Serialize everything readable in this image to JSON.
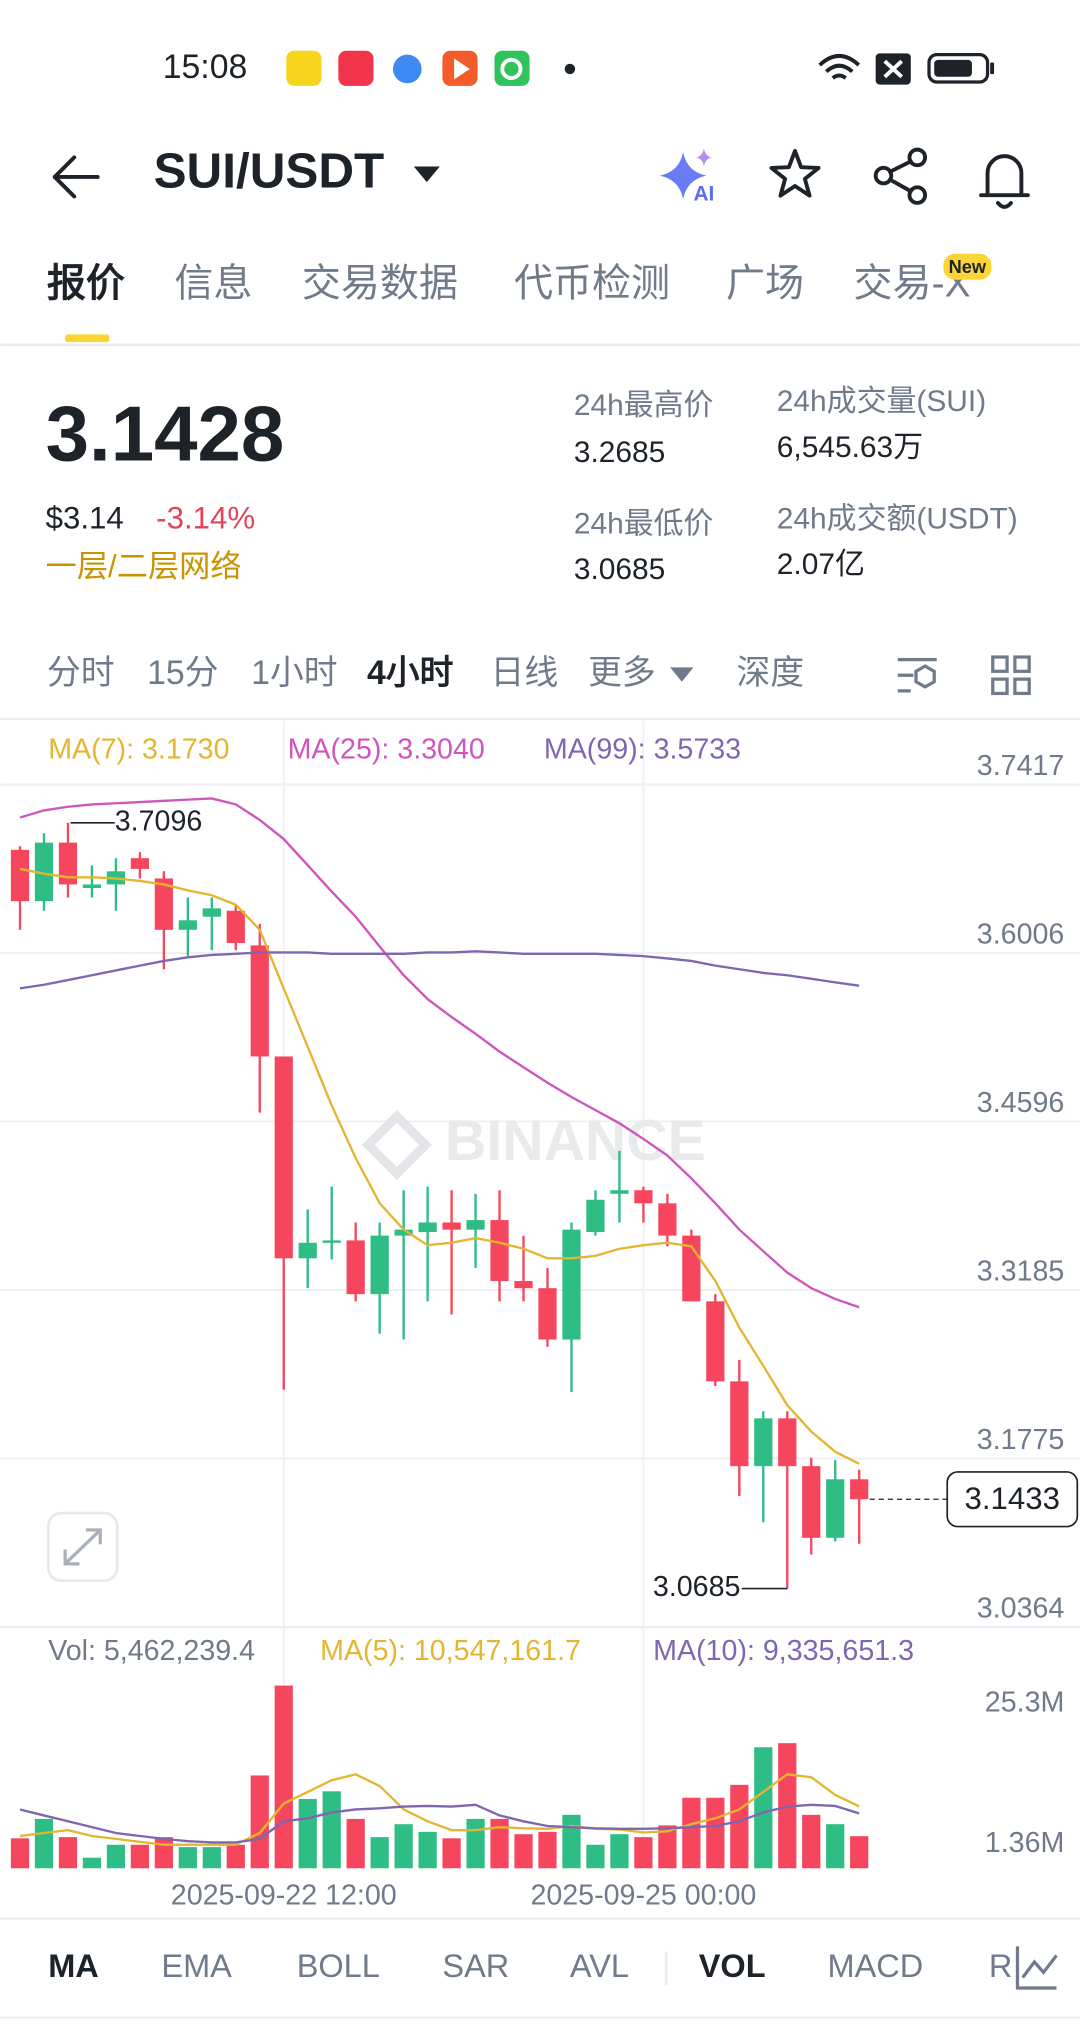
{
  "status": {
    "time": "15:08"
  },
  "header": {
    "pair": "SUI/USDT",
    "ai": "AI"
  },
  "tabs": [
    "报价",
    "信息",
    "交易数据",
    "代币检测",
    "广场",
    "交易-X"
  ],
  "tab_badge": "New",
  "price": {
    "last": "3.1428",
    "usd": "$3.14",
    "change": "-3.14%",
    "tag": "一层/二层网络"
  },
  "stats": [
    {
      "label": "24h最高价",
      "value": "3.2685"
    },
    {
      "label": "24h最低价",
      "value": "3.0685"
    },
    {
      "label": "24h成交量(SUI)",
      "value": "6,545.63万"
    },
    {
      "label": "24h成交额(USDT)",
      "value": "2.07亿"
    }
  ],
  "intervals": [
    "分时",
    "15分",
    "1小时",
    "4小时",
    "日线",
    "更多",
    "深度"
  ],
  "indicators": [
    "MA",
    "EMA",
    "BOLL",
    "SAR",
    "AVL",
    "VOL",
    "MACD",
    "RSI"
  ],
  "chart_data": {
    "type": "candlestick",
    "categories": [
      null,
      null,
      null,
      null,
      null,
      null,
      null,
      null,
      null,
      null,
      null,
      "2025-09-22 12:00",
      null,
      null,
      null,
      null,
      null,
      null,
      null,
      null,
      null,
      null,
      null,
      null,
      null,
      null,
      "2025-09-25 00:00",
      null,
      null,
      null,
      null,
      null,
      null,
      null,
      null,
      null
    ],
    "candles": {
      "open": [
        3.687,
        3.644,
        3.693,
        3.655,
        3.658,
        3.68,
        3.663,
        3.62,
        3.631,
        3.636,
        3.607,
        3.514,
        3.345,
        3.358,
        3.36,
        3.315,
        3.364,
        3.367,
        3.375,
        3.369,
        3.377,
        3.326,
        3.32,
        3.277,
        3.367,
        3.399,
        3.402,
        3.391,
        3.364,
        3.309,
        3.242,
        3.171,
        3.211,
        3.171,
        3.111,
        3.16
      ],
      "high": [
        3.69,
        3.701,
        3.7096,
        3.674,
        3.68,
        3.685,
        3.669,
        3.647,
        3.647,
        3.641,
        3.625,
        3.514,
        3.386,
        3.405,
        3.375,
        3.375,
        3.402,
        3.405,
        3.402,
        3.399,
        3.402,
        3.364,
        3.337,
        3.375,
        3.402,
        3.435,
        3.405,
        3.399,
        3.369,
        3.315,
        3.26,
        3.217,
        3.217,
        3.178,
        3.176,
        3.168
      ],
      "low": [
        3.62,
        3.636,
        3.647,
        3.647,
        3.636,
        3.663,
        3.587,
        3.598,
        3.603,
        3.603,
        3.467,
        3.235,
        3.32,
        3.344,
        3.309,
        3.282,
        3.277,
        3.309,
        3.298,
        3.337,
        3.309,
        3.309,
        3.271,
        3.233,
        3.364,
        3.375,
        3.375,
        3.355,
        3.309,
        3.238,
        3.146,
        3.124,
        3.0685,
        3.097,
        3.108,
        3.106
      ],
      "close": [
        3.644,
        3.693,
        3.658,
        3.658,
        3.669,
        3.671,
        3.62,
        3.628,
        3.638,
        3.609,
        3.514,
        3.345,
        3.358,
        3.36,
        3.315,
        3.364,
        3.369,
        3.375,
        3.369,
        3.377,
        3.326,
        3.32,
        3.277,
        3.369,
        3.394,
        3.402,
        3.391,
        3.364,
        3.309,
        3.242,
        3.171,
        3.211,
        3.171,
        3.111,
        3.16,
        3.1433
      ]
    },
    "up_color": "#2ebd85",
    "down_color": "#f6465d",
    "ylim": [
      3.0364,
      3.7885
    ],
    "yticks": [
      3.7417,
      3.6006,
      3.4596,
      3.3185,
      3.1775,
      3.0364
    ],
    "grid": true,
    "series": [
      {
        "name": "MA(7): 3.1730",
        "color": "#e4b531",
        "values": [
          3.671,
          3.667,
          3.664,
          3.664,
          3.663,
          3.661,
          3.658,
          3.653,
          3.649,
          3.641,
          3.62,
          3.571,
          3.522,
          3.473,
          3.429,
          3.391,
          3.369,
          3.356,
          3.358,
          3.362,
          3.358,
          3.353,
          3.345,
          3.345,
          3.347,
          3.353,
          3.356,
          3.358,
          3.355,
          3.326,
          3.287,
          3.255,
          3.222,
          3.2,
          3.183,
          3.173
        ]
      },
      {
        "name": "MA(25): 3.3040",
        "color": "#cf55bd",
        "values": [
          3.714,
          3.72,
          3.723,
          3.725,
          3.726,
          3.727,
          3.728,
          3.729,
          3.73,
          3.725,
          3.712,
          3.696,
          3.674,
          3.652,
          3.631,
          3.606,
          3.582,
          3.562,
          3.547,
          3.533,
          3.518,
          3.505,
          3.492,
          3.48,
          3.469,
          3.458,
          3.445,
          3.431,
          3.412,
          3.391,
          3.369,
          3.351,
          3.333,
          3.32,
          3.311,
          3.304
        ]
      },
      {
        "name": "MA(99): 3.5733",
        "color": "#8066b0",
        "values": [
          3.571,
          3.574,
          3.578,
          3.582,
          3.586,
          3.59,
          3.594,
          3.597,
          3.599,
          3.6,
          3.601,
          3.601,
          3.601,
          3.6,
          3.6,
          3.6,
          3.6,
          3.601,
          3.601,
          3.602,
          3.601,
          3.6,
          3.6,
          3.6,
          3.6,
          3.599,
          3.598,
          3.596,
          3.594,
          3.59,
          3.587,
          3.584,
          3.582,
          3.579,
          3.576,
          3.5733
        ]
      }
    ],
    "watermark": "BINANCE",
    "volume": {
      "name": "Vol: 5,462,239.4",
      "values": [
        5100000,
        8400000,
        5300000,
        1800000,
        4000000,
        4000000,
        5300000,
        3600000,
        3600000,
        4000000,
        15800000,
        31100000,
        11800000,
        13100000,
        8400000,
        5300000,
        7500000,
        6200000,
        5100000,
        8400000,
        8400000,
        5800000,
        6200000,
        9100000,
        4000000,
        5800000,
        5300000,
        7300000,
        12000000,
        12000000,
        14200000,
        20600000,
        21300000,
        9100000,
        7500000,
        5462239.4
      ],
      "ylim": [
        0,
        33000000
      ],
      "yticks": [
        {
          "value": 25300000,
          "label": "25.3M"
        },
        {
          "value": 1360000,
          "label": "1.36M"
        }
      ],
      "series": [
        {
          "name": "MA(5): 10,547,161.7",
          "color": "#e4b531",
          "values": [
            5500000,
            6000000,
            6500000,
            5500000,
            5000000,
            4500000,
            4000000,
            4000000,
            4000000,
            4000000,
            6000000,
            11000000,
            13000000,
            15000000,
            16000000,
            14000000,
            10000000,
            8000000,
            6500000,
            6500000,
            7000000,
            6800000,
            6700000,
            7200000,
            6700000,
            6600000,
            6100000,
            6300000,
            7500000,
            8500000,
            10000000,
            13000000,
            16000000,
            15500000,
            12500000,
            10547161.7
          ]
        },
        {
          "name": "MA(10): 9,335,651.3",
          "color": "#8066b0",
          "values": [
            10000000,
            9000000,
            8000000,
            7000000,
            6000000,
            5500000,
            5000000,
            4600000,
            4400000,
            4400000,
            5000000,
            8000000,
            8500000,
            9500000,
            10000000,
            10200000,
            10500000,
            10600000,
            10500000,
            10800000,
            9000000,
            8000000,
            7200000,
            7000000,
            6800000,
            6700000,
            6700000,
            6800000,
            7000000,
            7200000,
            8000000,
            9500000,
            10500000,
            10800000,
            10600000,
            9335651.3
          ]
        }
      ]
    }
  }
}
